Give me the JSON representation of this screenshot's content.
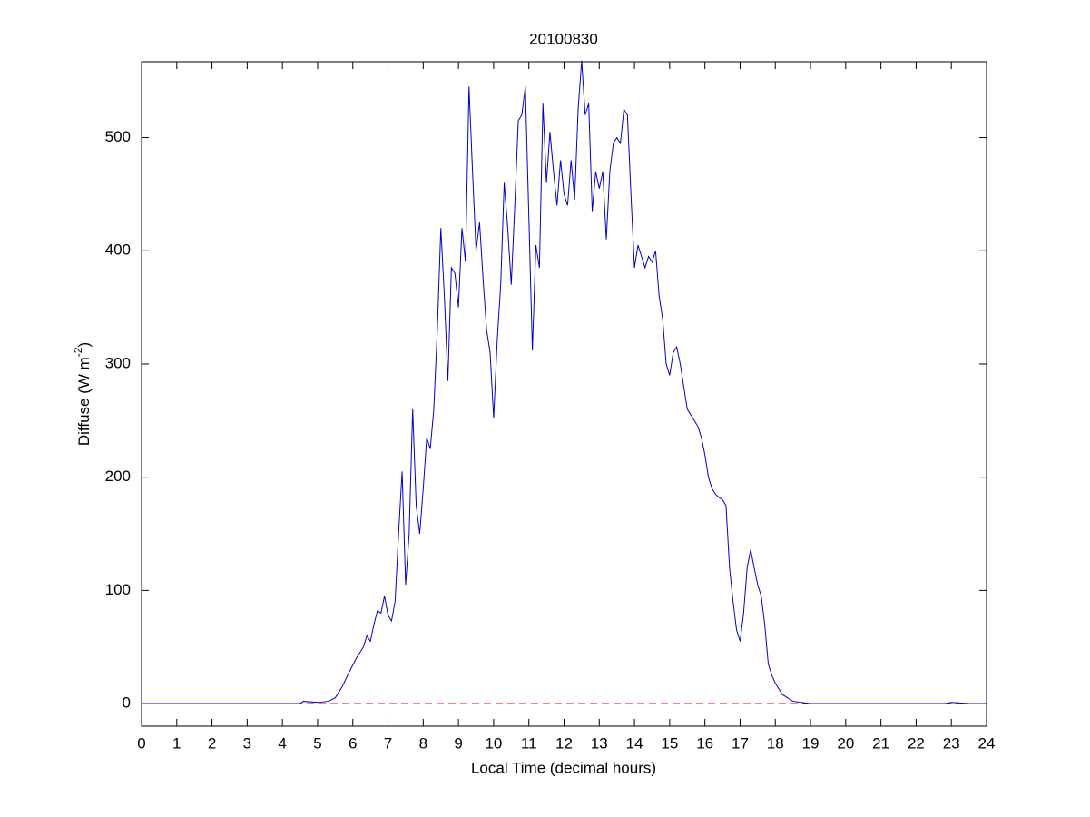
{
  "chart_data": {
    "type": "line",
    "title": "20100830",
    "x_label": "Local Time (decimal hours)",
    "y_label_parts": [
      "Diffuse (W m",
      "-2",
      ")"
    ],
    "xlim": [
      0,
      24
    ],
    "ylim": [
      -20,
      567
    ],
    "xticks": [
      0,
      1,
      2,
      3,
      4,
      5,
      6,
      7,
      8,
      9,
      10,
      11,
      12,
      13,
      14,
      15,
      16,
      17,
      18,
      19,
      20,
      21,
      22,
      23,
      24
    ],
    "yticks": [
      0,
      100,
      200,
      300,
      400,
      500
    ],
    "reference_line": {
      "value": 0,
      "color": "#ff0000",
      "dash": true
    },
    "series": [
      {
        "color": "#0000cc",
        "x": [
          0,
          4.5,
          4.6,
          5.0,
          5.3,
          5.5,
          5.7,
          5.9,
          6.1,
          6.3,
          6.4,
          6.5,
          6.6,
          6.7,
          6.8,
          6.9,
          7.0,
          7.1,
          7.2,
          7.3,
          7.4,
          7.5,
          7.6,
          7.7,
          7.8,
          7.9,
          8.0,
          8.1,
          8.2,
          8.3,
          8.4,
          8.5,
          8.6,
          8.7,
          8.8,
          8.9,
          9.0,
          9.1,
          9.2,
          9.3,
          9.4,
          9.5,
          9.6,
          9.7,
          9.8,
          9.9,
          10.0,
          10.1,
          10.2,
          10.3,
          10.4,
          10.5,
          10.6,
          10.7,
          10.8,
          10.9,
          11.0,
          11.1,
          11.2,
          11.3,
          11.4,
          11.5,
          11.6,
          11.7,
          11.8,
          11.9,
          12.0,
          12.1,
          12.2,
          12.3,
          12.4,
          12.5,
          12.6,
          12.7,
          12.8,
          12.9,
          13.0,
          13.1,
          13.2,
          13.3,
          13.4,
          13.5,
          13.6,
          13.7,
          13.8,
          13.9,
          14.0,
          14.1,
          14.2,
          14.3,
          14.4,
          14.5,
          14.6,
          14.7,
          14.8,
          14.9,
          15.0,
          15.1,
          15.2,
          15.3,
          15.4,
          15.5,
          15.6,
          15.7,
          15.8,
          15.9,
          16.0,
          16.1,
          16.2,
          16.3,
          16.4,
          16.5,
          16.6,
          16.7,
          16.8,
          16.9,
          17.0,
          17.1,
          17.2,
          17.3,
          17.4,
          17.5,
          17.6,
          17.7,
          17.8,
          17.9,
          18.0,
          18.2,
          18.5,
          19.0,
          22.8,
          23.0,
          23.5,
          24
        ],
        "values": [
          0,
          0,
          2,
          1,
          2,
          5,
          15,
          28,
          40,
          50,
          60,
          55,
          70,
          82,
          80,
          95,
          78,
          73,
          90,
          150,
          205,
          105,
          150,
          260,
          175,
          150,
          190,
          235,
          225,
          260,
          330,
          420,
          360,
          285,
          385,
          380,
          350,
          420,
          390,
          545,
          470,
          400,
          425,
          375,
          330,
          310,
          252,
          320,
          370,
          460,
          420,
          370,
          440,
          515,
          520,
          545,
          430,
          312,
          405,
          385,
          530,
          460,
          505,
          470,
          440,
          480,
          450,
          440,
          480,
          445,
          525,
          568,
          520,
          530,
          435,
          470,
          455,
          470,
          410,
          470,
          495,
          500,
          495,
          525,
          520,
          450,
          385,
          405,
          395,
          385,
          395,
          390,
          400,
          360,
          340,
          300,
          290,
          310,
          315,
          300,
          280,
          260,
          255,
          250,
          245,
          235,
          220,
          200,
          190,
          185,
          182,
          180,
          175,
          120,
          90,
          65,
          55,
          80,
          120,
          136,
          120,
          105,
          95,
          70,
          35,
          25,
          18,
          8,
          2,
          0,
          0,
          1,
          0,
          0
        ]
      }
    ]
  }
}
